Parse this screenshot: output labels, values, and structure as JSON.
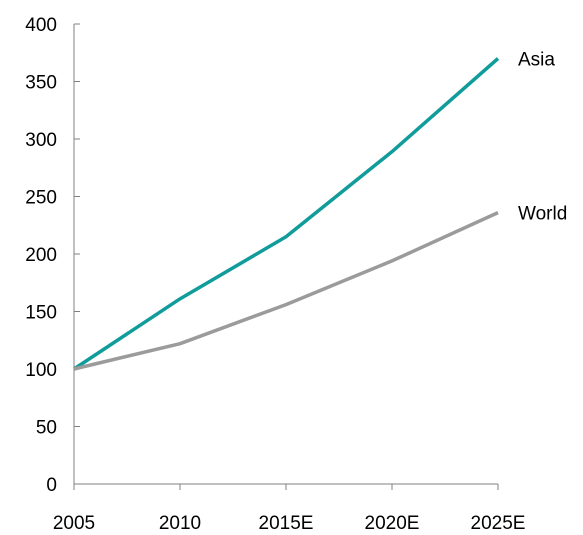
{
  "chart_data": {
    "type": "line",
    "categories": [
      "2005",
      "2010",
      "2015E",
      "2020E",
      "2025E"
    ],
    "series": [
      {
        "name": "Asia",
        "values": [
          100,
          161,
          215,
          289,
          370
        ],
        "color": "#119c9c"
      },
      {
        "name": "World",
        "values": [
          100,
          122,
          156,
          194,
          236
        ],
        "color": "#9b9b9b"
      }
    ],
    "title": "",
    "xlabel": "",
    "ylabel": "",
    "ylim": [
      0,
      400
    ],
    "yticks": [
      "0",
      "50",
      "100",
      "150",
      "200",
      "250",
      "300",
      "350",
      "400"
    ],
    "grid": false,
    "legend": "inline-right",
    "axis_color": "#808080"
  }
}
